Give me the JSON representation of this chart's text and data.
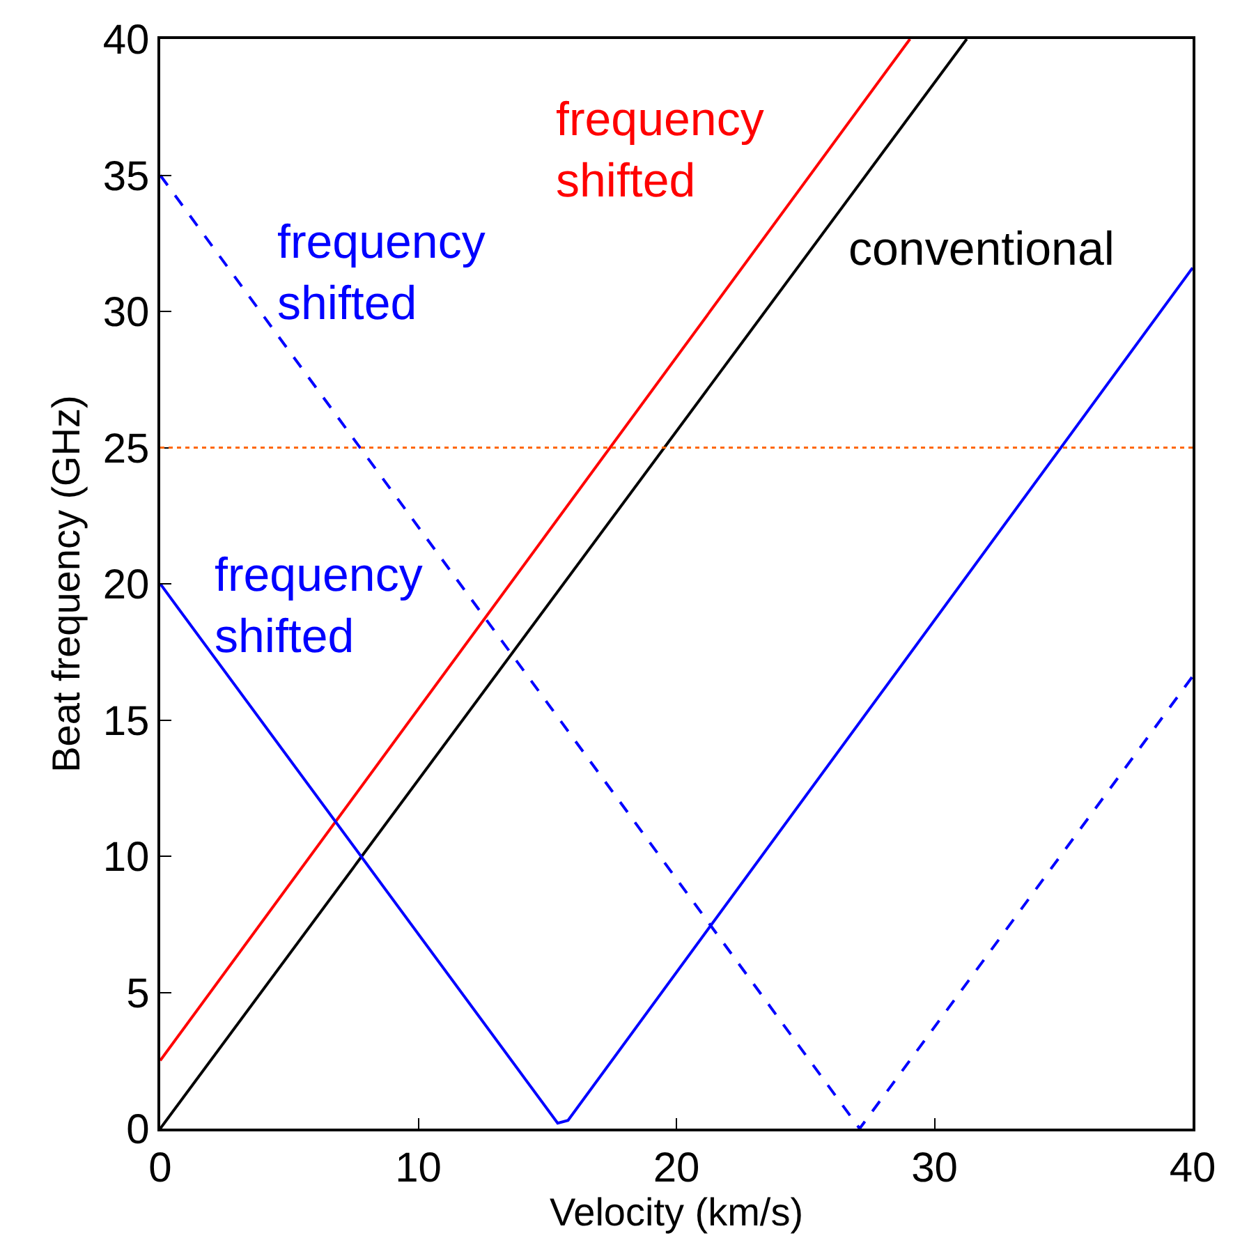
{
  "chart_data": {
    "type": "line",
    "xlabel": "Velocity (km/s)",
    "ylabel": "Beat frequency (GHz)",
    "xlim": [
      0,
      40
    ],
    "ylim": [
      0,
      40
    ],
    "xticks": [
      0,
      10,
      20,
      30,
      40
    ],
    "yticks": [
      0,
      5,
      10,
      15,
      20,
      25,
      30,
      35,
      40
    ],
    "grid": false,
    "legend": false,
    "marker": "none",
    "series": [
      {
        "name": "conventional",
        "color": "#000000",
        "line_style": "solid",
        "x": [
          0,
          31.25
        ],
        "values": [
          0,
          40
        ]
      },
      {
        "name": "frequency\nshifted",
        "color": "#ff0000",
        "line_style": "solid",
        "x": [
          0,
          29.05
        ],
        "values": [
          2.5,
          40
        ]
      },
      {
        "name": "frequency\nshifted",
        "color": "#0000ff",
        "line_style": "solid",
        "x": [
          0,
          15.4,
          15.8,
          40
        ],
        "values": [
          20,
          0.2,
          0.3,
          31.6
        ]
      },
      {
        "name": "frequency\nshifted",
        "color": "#0000ff",
        "line_style": "dashed",
        "x": [
          0,
          27.1,
          40
        ],
        "values": [
          35,
          0,
          16.6
        ]
      }
    ],
    "ref_lines": [
      {
        "axis": "y",
        "value": 25,
        "color": "#ff6600",
        "line_style": "dotted"
      }
    ]
  }
}
